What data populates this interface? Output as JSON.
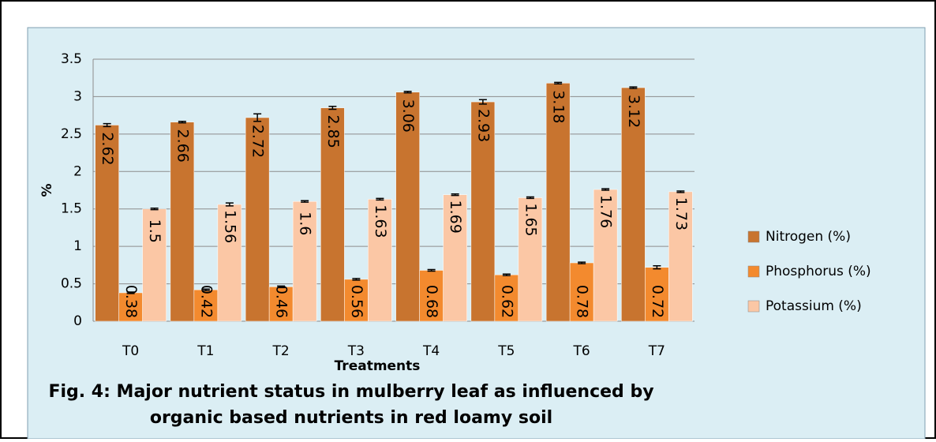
{
  "chart_data": {
    "type": "bar",
    "title": [
      "Fig. 4: Major nutrient status in mulberry  leaf as influenced by",
      "organic based nutrients in red loamy soil"
    ],
    "x_label": "Treatments",
    "y_label": "%",
    "categories": [
      "T0",
      "T1",
      "T2",
      "T3",
      "T4",
      "T5",
      "T6",
      "T7"
    ],
    "series": [
      {
        "name": "Nitrogen (%)",
        "color": "#c8742f",
        "values": [
          2.62,
          2.66,
          2.72,
          2.85,
          3.06,
          2.93,
          3.18,
          3.12
        ],
        "errors": [
          0.02,
          0.01,
          0.05,
          0.02,
          0.01,
          0.03,
          0.01,
          0.01
        ]
      },
      {
        "name": "Phosphorus (%)",
        "color": "#f38a2e",
        "values": [
          0.38,
          0.42,
          0.46,
          0.56,
          0.68,
          0.62,
          0.78,
          0.72
        ],
        "errors": [
          0.01,
          0.01,
          0.01,
          0.01,
          0.01,
          0.01,
          0.01,
          0.02
        ]
      },
      {
        "name": "Potassium (%)",
        "color": "#fbc7a5",
        "values": [
          1.5,
          1.56,
          1.6,
          1.63,
          1.69,
          1.65,
          1.76,
          1.73
        ],
        "errors": [
          0.01,
          0.02,
          0.01,
          0.01,
          0.01,
          0.01,
          0.01,
          0.01
        ]
      }
    ],
    "ylim": [
      0,
      3.5
    ],
    "yticks": [
      0,
      0.5,
      1,
      1.5,
      2,
      2.5,
      3,
      3.5
    ],
    "grid": true,
    "legend": "right"
  }
}
